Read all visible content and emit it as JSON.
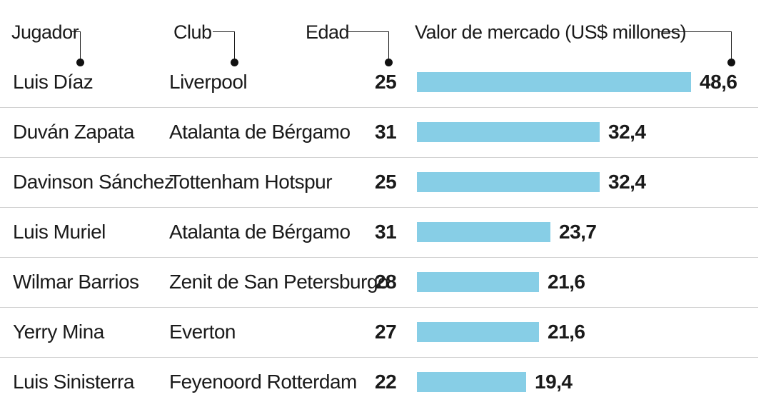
{
  "headers": {
    "player": "Jugador",
    "club": "Club",
    "age": "Edad",
    "value": "Valor de mercado (US$ millones)"
  },
  "rows": [
    {
      "player": "Luis Díaz",
      "club": "Liverpool",
      "age": "25",
      "value_label": "48,6"
    },
    {
      "player": "Duván Zapata",
      "club": "Atalanta de Bérgamo",
      "age": "31",
      "value_label": "32,4"
    },
    {
      "player": "Davinson Sánchez",
      "club": "Tottenham Hotspur",
      "age": "25",
      "value_label": "32,4"
    },
    {
      "player": "Luis Muriel",
      "club": "Atalanta de Bérgamo",
      "age": "31",
      "value_label": "23,7"
    },
    {
      "player": "Wilmar Barrios",
      "club": "Zenit de San Petersburgo",
      "age": "28",
      "value_label": "21,6"
    },
    {
      "player": "Yerry Mina",
      "club": "Everton",
      "age": "27",
      "value_label": "21,6"
    },
    {
      "player": "Luis Sinisterra",
      "club": "Feyenoord Rotterdam",
      "age": "22",
      "value_label": "19,4"
    }
  ],
  "chart_data": {
    "type": "bar",
    "orientation": "horizontal",
    "categories": [
      "Luis Díaz",
      "Duván Zapata",
      "Davinson Sánchez",
      "Luis Muriel",
      "Wilmar Barrios",
      "Yerry Mina",
      "Luis Sinisterra"
    ],
    "values": [
      48.6,
      32.4,
      32.4,
      23.7,
      21.6,
      21.6,
      19.4
    ],
    "xlabel": "Valor de mercado (US$ millones)",
    "xlim": [
      0,
      48.6
    ],
    "grid": false,
    "legend": "none"
  },
  "colors": {
    "bar": "#87CEE6",
    "text": "#1a1a1a",
    "separator": "#cfcfcf"
  }
}
